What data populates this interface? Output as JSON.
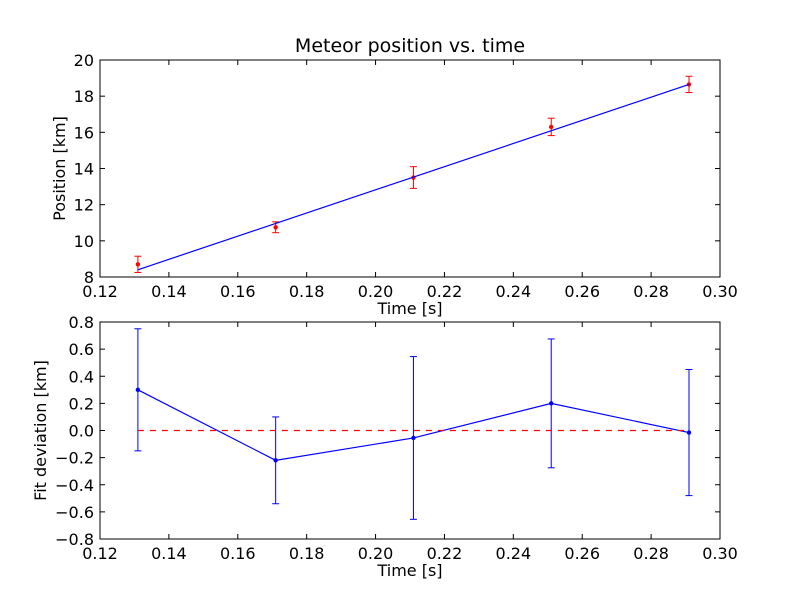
{
  "chart_data": [
    {
      "type": "scatter",
      "title": "Meteor position vs. time",
      "xlabel": "Time [s]",
      "ylabel": "Position [km]",
      "xlim": [
        0.12,
        0.3
      ],
      "ylim": [
        8,
        20
      ],
      "xticks": [
        0.12,
        0.14,
        0.16,
        0.18,
        0.2,
        0.22,
        0.24,
        0.26,
        0.28,
        0.3
      ],
      "xtick_labels": [
        "0.12",
        "0.14",
        "0.16",
        "0.18",
        "0.20",
        "0.22",
        "0.24",
        "0.26",
        "0.28",
        "0.30"
      ],
      "yticks": [
        8,
        10,
        12,
        14,
        16,
        18,
        20
      ],
      "ytick_labels": [
        "8",
        "10",
        "12",
        "14",
        "16",
        "18",
        "20"
      ],
      "grid": false,
      "series": [
        {
          "kind": "errorbar",
          "color": "#ff0000",
          "marker": "dot",
          "x": [
            0.131,
            0.171,
            0.211,
            0.251,
            0.291
          ],
          "y": [
            8.7,
            10.75,
            13.5,
            16.3,
            18.65
          ],
          "yerr": [
            0.45,
            0.3,
            0.6,
            0.48,
            0.45
          ]
        },
        {
          "kind": "line",
          "color": "#0000ff",
          "x": [
            0.131,
            0.291
          ],
          "y": [
            8.4,
            18.65
          ]
        }
      ]
    },
    {
      "type": "line",
      "title": "",
      "xlabel": "Time [s]",
      "ylabel": "Fit deviation [km]",
      "xlim": [
        0.12,
        0.3
      ],
      "ylim": [
        -0.8,
        0.8
      ],
      "xticks": [
        0.12,
        0.14,
        0.16,
        0.18,
        0.2,
        0.22,
        0.24,
        0.26,
        0.28,
        0.3
      ],
      "xtick_labels": [
        "0.12",
        "0.14",
        "0.16",
        "0.18",
        "0.20",
        "0.22",
        "0.24",
        "0.26",
        "0.28",
        "0.30"
      ],
      "yticks": [
        -0.8,
        -0.6,
        -0.4,
        -0.2,
        0.0,
        0.2,
        0.4,
        0.6,
        0.8
      ],
      "ytick_labels": [
        "−0.8",
        "−0.6",
        "−0.4",
        "−0.2",
        "0.0",
        "0.2",
        "0.4",
        "0.6",
        "0.8"
      ],
      "grid": false,
      "series": [
        {
          "kind": "errorbar-line",
          "color": "#0000ff",
          "marker": "dot",
          "x": [
            0.131,
            0.171,
            0.211,
            0.251,
            0.291
          ],
          "y": [
            0.3,
            -0.22,
            -0.055,
            0.2,
            -0.015
          ],
          "yerr": [
            0.45,
            0.32,
            0.6,
            0.475,
            0.465
          ]
        },
        {
          "kind": "reference-line",
          "color": "#ff0000",
          "dash": "dashed",
          "x": [
            0.131,
            0.291
          ],
          "y": [
            0.0,
            0.0
          ]
        }
      ]
    }
  ]
}
